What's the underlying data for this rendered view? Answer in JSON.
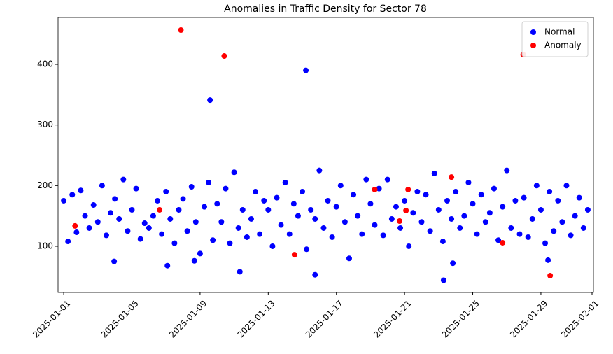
{
  "chart_data": {
    "type": "scatter",
    "title": "Anomalies in Traffic Density for Sector 78",
    "series": [
      {
        "name": "Normal",
        "color": "#0000ff",
        "x": [
          "2025-01-01 00:00",
          "2025-01-01 06:00",
          "2025-01-01 12:00",
          "2025-01-01 18:00",
          "2025-01-02 00:00",
          "2025-01-02 06:00",
          "2025-01-02 12:00",
          "2025-01-02 18:00",
          "2025-01-03 00:00",
          "2025-01-03 06:00",
          "2025-01-03 12:00",
          "2025-01-03 18:00",
          "2025-01-04 00:00",
          "2025-01-04 06:00",
          "2025-01-04 12:00",
          "2025-01-04 18:00",
          "2025-01-05 00:00",
          "2025-01-05 06:00",
          "2025-01-05 12:00",
          "2025-01-05 18:00",
          "2025-01-06 00:00",
          "2025-01-06 06:00",
          "2025-01-06 12:00",
          "2025-01-06 18:00",
          "2025-01-07 00:00",
          "2025-01-07 06:00",
          "2025-01-07 12:00",
          "2025-01-07 18:00",
          "2025-01-08 00:00",
          "2025-01-08 06:00",
          "2025-01-08 12:00",
          "2025-01-08 18:00",
          "2025-01-09 00:00",
          "2025-01-09 06:00",
          "2025-01-09 12:00",
          "2025-01-09 18:00",
          "2025-01-10 00:00",
          "2025-01-10 06:00",
          "2025-01-10 12:00",
          "2025-01-10 18:00",
          "2025-01-11 00:00",
          "2025-01-11 06:00",
          "2025-01-11 12:00",
          "2025-01-11 18:00",
          "2025-01-12 00:00",
          "2025-01-12 06:00",
          "2025-01-12 12:00",
          "2025-01-12 18:00",
          "2025-01-13 00:00",
          "2025-01-13 06:00",
          "2025-01-13 12:00",
          "2025-01-13 18:00",
          "2025-01-14 00:00",
          "2025-01-14 06:00",
          "2025-01-14 12:00",
          "2025-01-14 18:00",
          "2025-01-15 00:00",
          "2025-01-15 06:00",
          "2025-01-15 12:00",
          "2025-01-15 18:00",
          "2025-01-16 00:00",
          "2025-01-16 06:00",
          "2025-01-16 12:00",
          "2025-01-16 18:00",
          "2025-01-17 00:00",
          "2025-01-17 06:00",
          "2025-01-17 12:00",
          "2025-01-17 18:00",
          "2025-01-18 00:00",
          "2025-01-18 06:00",
          "2025-01-18 12:00",
          "2025-01-18 18:00",
          "2025-01-19 00:00",
          "2025-01-19 06:00",
          "2025-01-19 12:00",
          "2025-01-19 18:00",
          "2025-01-20 00:00",
          "2025-01-20 06:00",
          "2025-01-20 12:00",
          "2025-01-20 18:00",
          "2025-01-21 00:00",
          "2025-01-21 06:00",
          "2025-01-21 12:00",
          "2025-01-21 18:00",
          "2025-01-22 00:00",
          "2025-01-22 06:00",
          "2025-01-22 12:00",
          "2025-01-22 18:00",
          "2025-01-23 00:00",
          "2025-01-23 06:00",
          "2025-01-23 12:00",
          "2025-01-23 18:00",
          "2025-01-24 00:00",
          "2025-01-24 06:00",
          "2025-01-24 12:00",
          "2025-01-24 18:00",
          "2025-01-25 00:00",
          "2025-01-25 06:00",
          "2025-01-25 12:00",
          "2025-01-25 18:00",
          "2025-01-26 00:00",
          "2025-01-26 06:00",
          "2025-01-26 12:00",
          "2025-01-26 18:00",
          "2025-01-27 00:00",
          "2025-01-27 06:00",
          "2025-01-27 12:00",
          "2025-01-27 18:00",
          "2025-01-28 00:00",
          "2025-01-28 06:00",
          "2025-01-28 12:00",
          "2025-01-28 18:00",
          "2025-01-29 00:00",
          "2025-01-29 06:00",
          "2025-01-29 12:00",
          "2025-01-29 18:00",
          "2025-01-30 00:00",
          "2025-01-30 06:00",
          "2025-01-30 12:00",
          "2025-01-30 18:00",
          "2025-01-31 00:00",
          "2025-01-31 06:00",
          "2025-01-31 12:00",
          "2025-01-31 18:00",
          "2025-01-09 14:00",
          "2025-01-15 05:00",
          "2025-01-11 08:00",
          "2025-01-15 18:00",
          "2025-01-23 07:00",
          "2025-01-23 20:00",
          "2025-01-03 23:00",
          "2025-01-07 02:00",
          "2025-01-08 16:00",
          "2025-01-29 10:00"
        ],
        "values": [
          175,
          108,
          185,
          123,
          192,
          150,
          130,
          168,
          140,
          200,
          118,
          155,
          178,
          145,
          210,
          125,
          160,
          195,
          112,
          138,
          130,
          150,
          175,
          120,
          190,
          145,
          105,
          160,
          178,
          125,
          198,
          140,
          88,
          165,
          205,
          110,
          170,
          140,
          195,
          105,
          222,
          130,
          160,
          115,
          145,
          190,
          120,
          175,
          160,
          100,
          180,
          135,
          205,
          120,
          170,
          150,
          190,
          95,
          160,
          145,
          225,
          130,
          175,
          115,
          165,
          200,
          140,
          80,
          185,
          150,
          120,
          210,
          170,
          135,
          195,
          118,
          210,
          145,
          165,
          130,
          175,
          100,
          155,
          190,
          140,
          185,
          125,
          220,
          160,
          108,
          175,
          145,
          190,
          130,
          150,
          205,
          170,
          120,
          185,
          140,
          155,
          195,
          110,
          165,
          225,
          130,
          175,
          120,
          180,
          115,
          145,
          200,
          160,
          105,
          190,
          125,
          175,
          140,
          200,
          118,
          150,
          180,
          130,
          160,
          341,
          390,
          58,
          53,
          44,
          72,
          75,
          68,
          76,
          77
        ]
      },
      {
        "name": "Anomaly",
        "color": "#ff0000",
        "x": [
          "2025-01-01 16:00",
          "2025-01-06 15:00",
          "2025-01-07 21:00",
          "2025-01-10 10:00",
          "2025-01-14 13:00",
          "2025-01-19 06:00",
          "2025-01-20 17:00",
          "2025-01-21 02:00",
          "2025-01-21 05:00",
          "2025-01-23 18:00",
          "2025-01-26 18:00",
          "2025-01-27 23:00",
          "2025-01-29 13:00"
        ],
        "values": [
          133.5,
          160,
          456.5,
          413.8,
          86,
          193.5,
          141.5,
          158.8,
          193.5,
          214,
          105.8,
          416,
          51.5
        ]
      }
    ],
    "ylim": [
      23.8,
      477.3
    ],
    "yticks": [
      100,
      200,
      300,
      400
    ],
    "xticks": [
      "2025-01-01",
      "2025-01-05",
      "2025-01-09",
      "2025-01-13",
      "2025-01-17",
      "2025-01-21",
      "2025-01-25",
      "2025-01-29",
      "2025-02-01"
    ],
    "legend": "upper right"
  }
}
